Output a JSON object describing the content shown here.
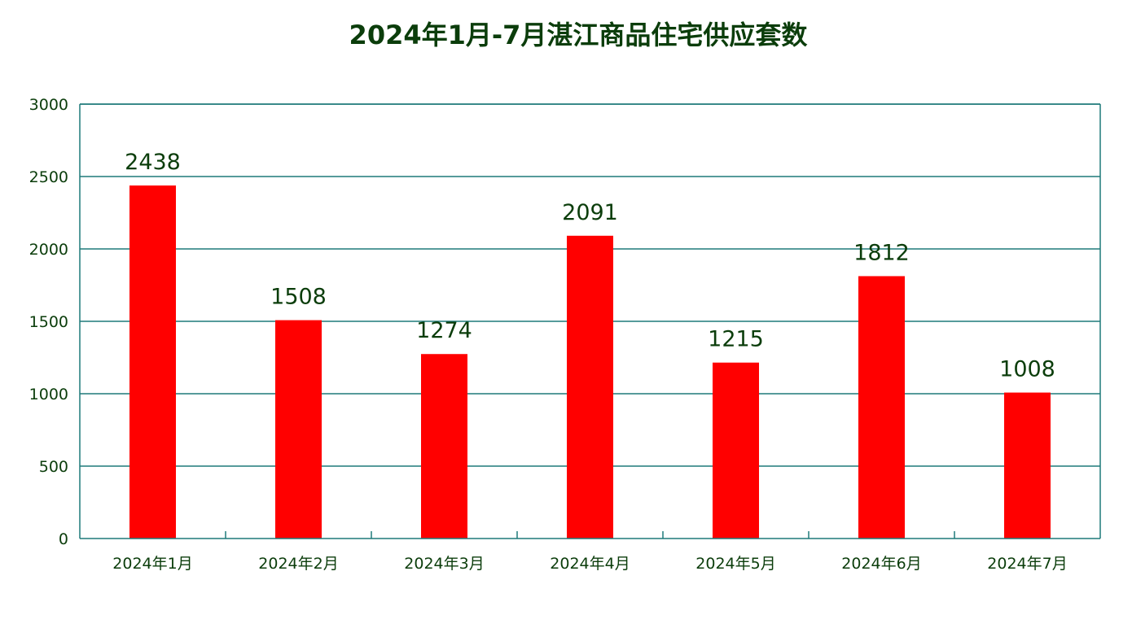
{
  "chart_data": {
    "type": "bar",
    "title": "2024年1月-7月湛江商品住宅供应套数",
    "xlabel": "",
    "ylabel": "",
    "categories": [
      "2024年1月",
      "2024年2月",
      "2024年3月",
      "2024年4月",
      "2024年5月",
      "2024年6月",
      "2024年7月"
    ],
    "values": [
      2438,
      1508,
      1274,
      2091,
      1215,
      1812,
      1008
    ],
    "ylim": [
      0,
      3000
    ],
    "yticks": [
      0,
      500,
      1000,
      1500,
      2000,
      2500,
      3000
    ],
    "grid": true,
    "legend": "none",
    "data_labels": true,
    "colors": {
      "bar": "#ff0000",
      "axis": "#1f7a7a",
      "grid": "#1f7a7a",
      "text": "#0b3d0b"
    }
  }
}
